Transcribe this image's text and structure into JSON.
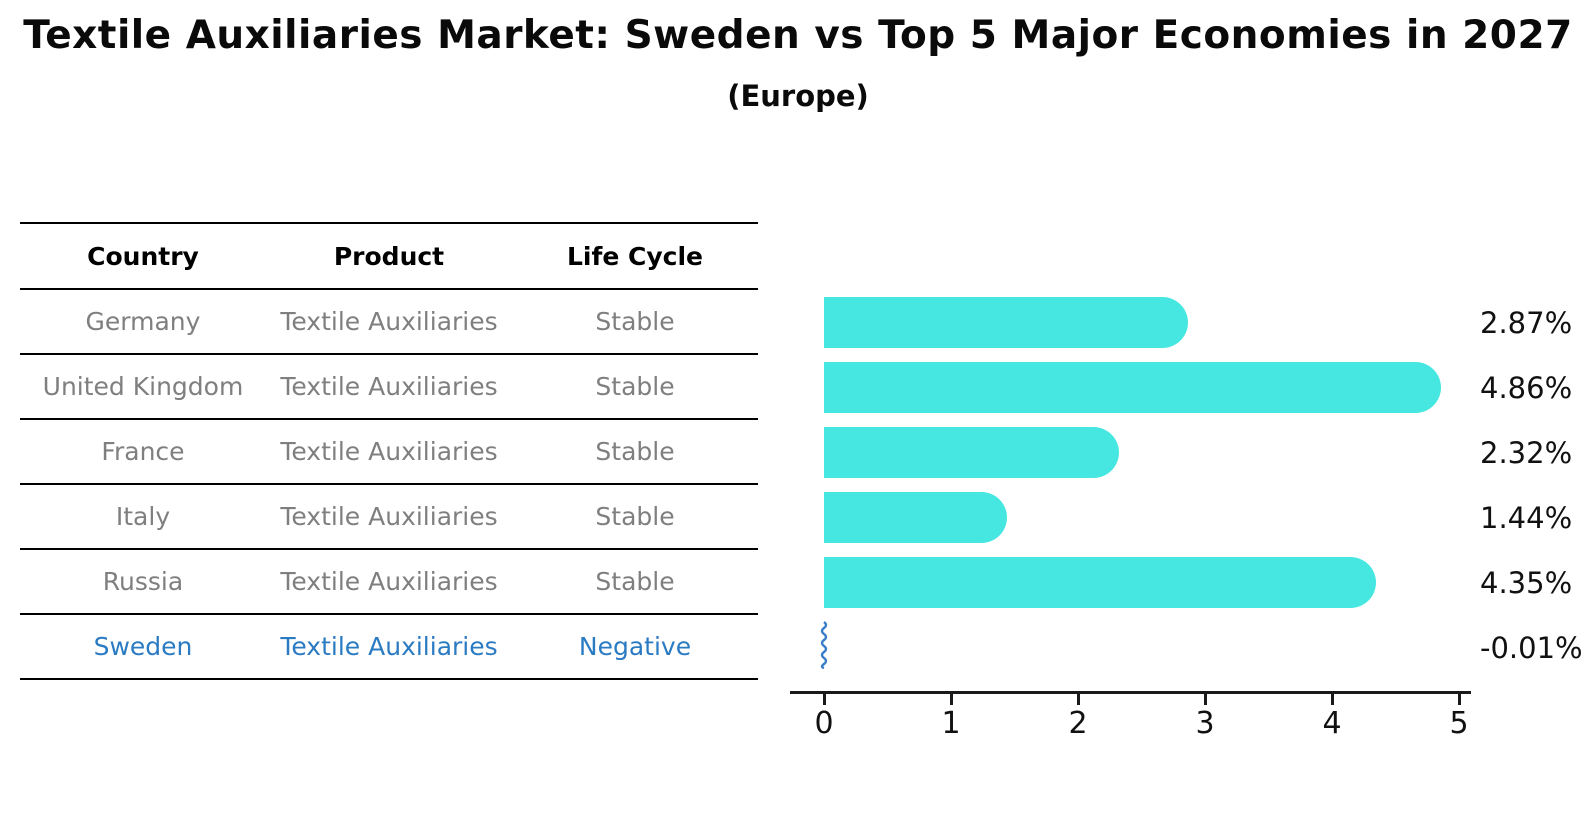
{
  "title": "Textile Auxiliaries Market: Sweden vs Top 5 Major Economies in 2027",
  "subtitle": "(Europe)",
  "table": {
    "headers": [
      "Country",
      "Product",
      "Life Cycle"
    ],
    "rows": [
      {
        "country": "Germany",
        "product": "Textile Auxiliaries",
        "life_cycle": "Stable"
      },
      {
        "country": "United Kingdom",
        "product": "Textile Auxiliaries",
        "life_cycle": "Stable"
      },
      {
        "country": "France",
        "product": "Textile Auxiliaries",
        "life_cycle": "Stable"
      },
      {
        "country": "Italy",
        "product": "Textile Auxiliaries",
        "life_cycle": "Stable"
      },
      {
        "country": "Russia",
        "product": "Textile Auxiliaries",
        "life_cycle": "Stable"
      },
      {
        "country": "Sweden",
        "product": "Textile Auxiliaries",
        "life_cycle": "Negative"
      }
    ]
  },
  "chart_data": {
    "type": "bar",
    "orientation": "horizontal",
    "categories": [
      "Germany",
      "United Kingdom",
      "France",
      "Italy",
      "Russia",
      "Sweden"
    ],
    "values": [
      2.87,
      4.86,
      2.32,
      1.44,
      4.35,
      -0.01
    ],
    "value_labels": [
      "2.87%",
      "4.86%",
      "2.32%",
      "1.44%",
      "4.35%",
      "-0.01%"
    ],
    "x_ticks": [
      0,
      1,
      2,
      3,
      4,
      5
    ],
    "xlim": [
      0,
      5.35
    ],
    "grid": false,
    "legend": "none",
    "bar_color": "#46e7e1",
    "negative_bar_color": "#3b7fc9"
  },
  "colors": {
    "highlight_text": "#2b7bc3",
    "row_text": "#7f7f7f",
    "axis": "#1a1a1a"
  }
}
